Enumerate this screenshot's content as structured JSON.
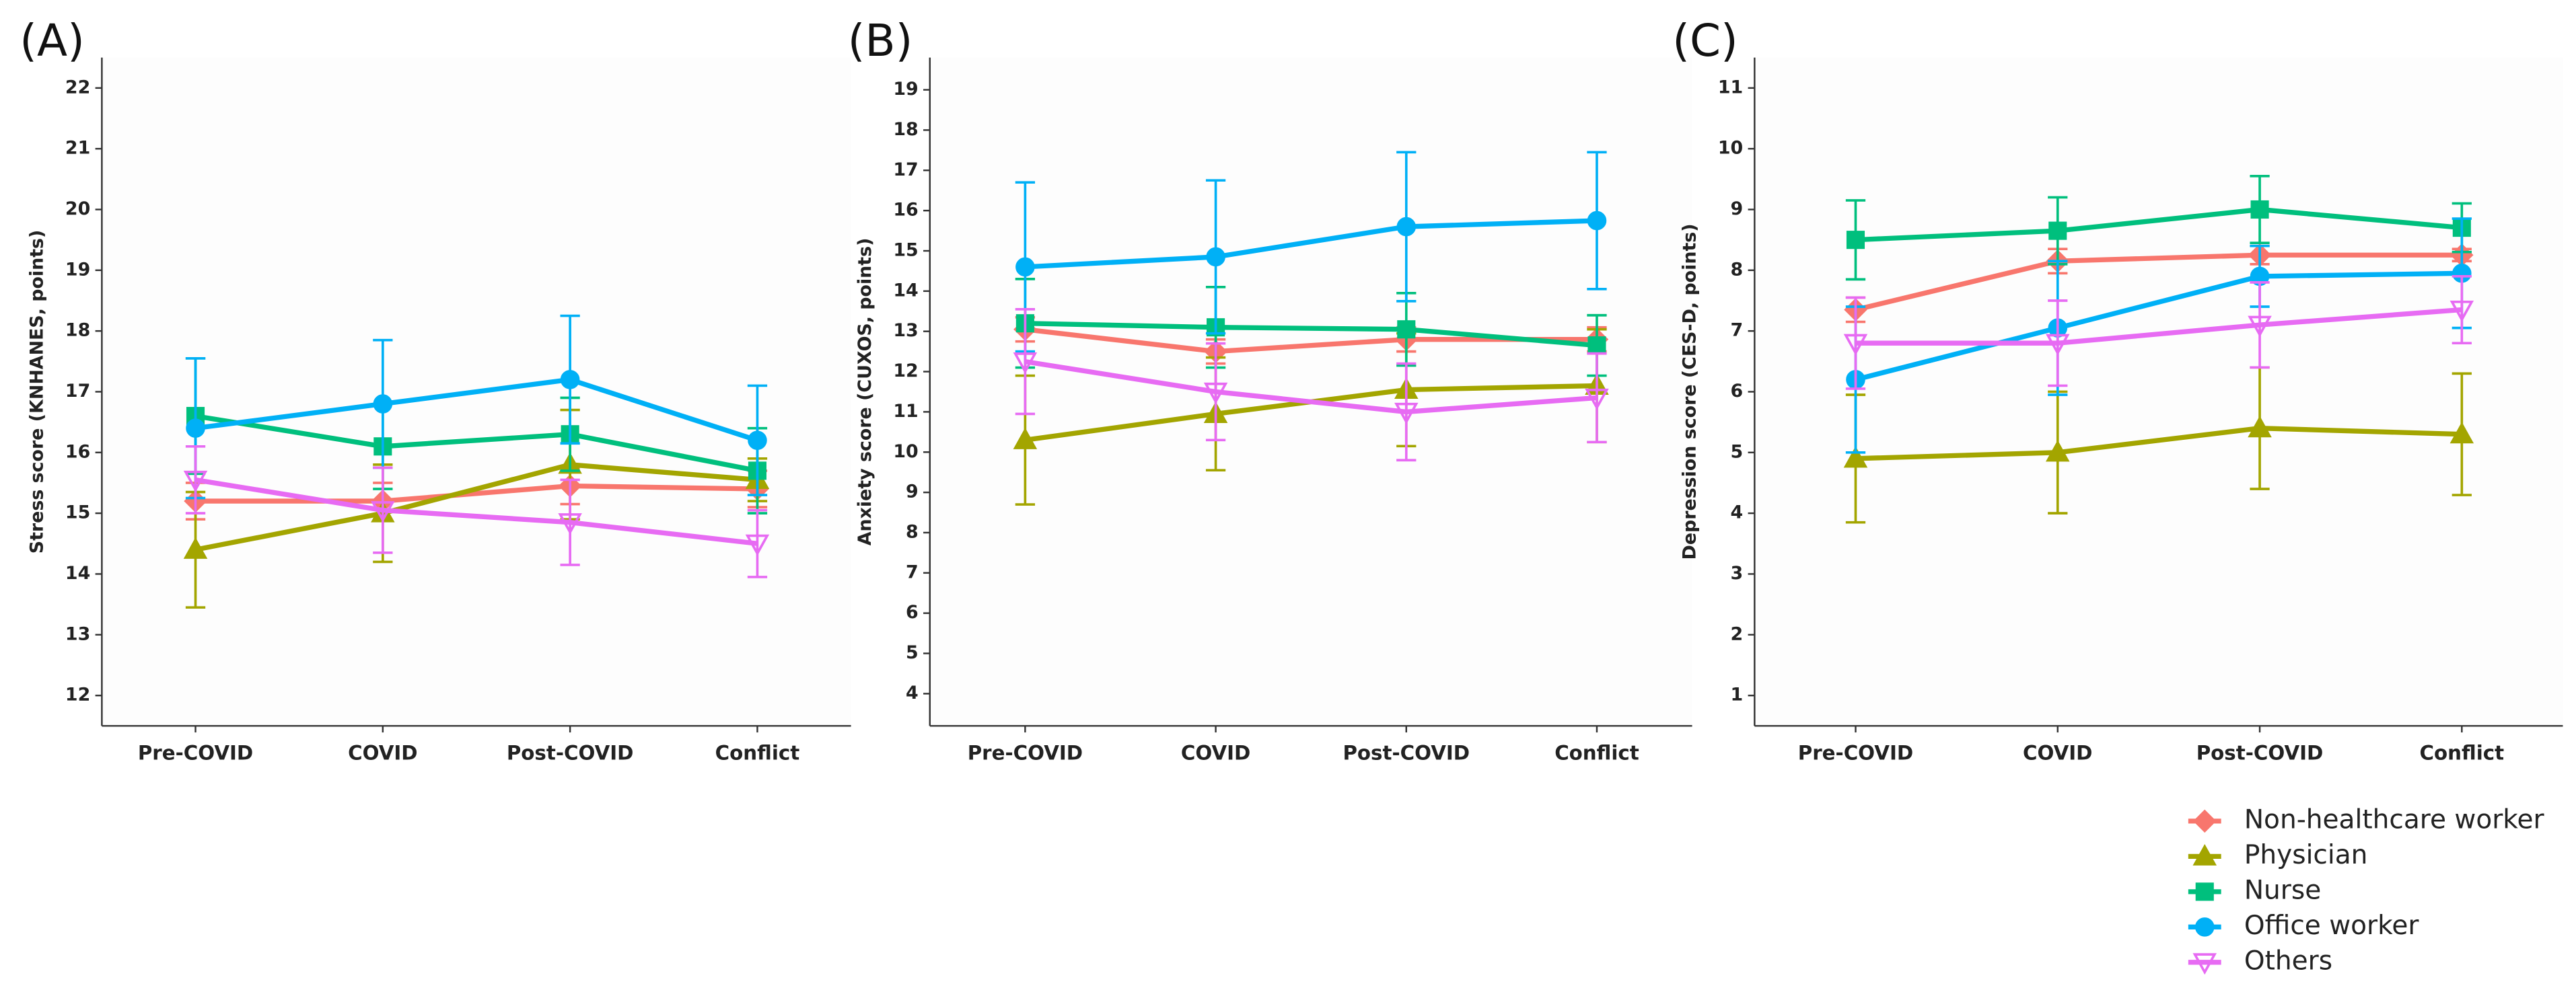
{
  "legend": [
    {
      "name": "Non-healthcare worker",
      "color": "#F8766D",
      "marker": "diamond"
    },
    {
      "name": "Physician",
      "color": "#A3A500",
      "marker": "triangle"
    },
    {
      "name": "Nurse",
      "color": "#00BF7D",
      "marker": "square"
    },
    {
      "name": "Office worker",
      "color": "#00B0F6",
      "marker": "circle"
    },
    {
      "name": "Others",
      "color": "#E76BF3",
      "marker": "open-down-triangle"
    }
  ],
  "chart_data": [
    {
      "type": "line",
      "panel": "(A)",
      "ylabel": "Stress score (KNHANES, points)",
      "categories": [
        "Pre-COVID",
        "COVID",
        "Post-COVID",
        "Conflict"
      ],
      "ylim": [
        11.5,
        22.5
      ],
      "yticks": [
        12,
        13,
        14,
        15,
        16,
        17,
        18,
        19,
        20,
        21,
        22
      ],
      "series": [
        {
          "values": [
            15.2,
            15.2,
            15.45,
            15.4
          ],
          "errors": [
            0.3,
            0.3,
            0.3,
            0.3
          ]
        },
        {
          "values": [
            14.4,
            15.0,
            15.8,
            15.55
          ],
          "errors": [
            0.95,
            0.8,
            0.9,
            0.35
          ]
        },
        {
          "values": [
            16.6,
            16.1,
            16.3,
            15.7
          ],
          "errors": [
            0.95,
            0.7,
            0.6,
            0.7
          ]
        },
        {
          "values": [
            16.4,
            16.8,
            17.2,
            16.2
          ],
          "errors": [
            1.15,
            1.05,
            1.05,
            0.9
          ]
        },
        {
          "values": [
            15.55,
            15.05,
            14.85,
            14.5
          ],
          "errors": [
            0.55,
            0.7,
            0.7,
            0.55
          ]
        }
      ]
    },
    {
      "type": "line",
      "panel": "(B)",
      "ylabel": "Anxiety score (CUXOS, points)",
      "categories": [
        "Pre-COVID",
        "COVID",
        "Post-COVID",
        "Conflict"
      ],
      "ylim": [
        3.2,
        19.8
      ],
      "yticks": [
        4,
        5,
        6,
        7,
        8,
        9,
        10,
        11,
        12,
        13,
        14,
        15,
        16,
        17,
        18,
        19
      ],
      "series": [
        {
          "values": [
            13.05,
            12.5,
            12.8,
            12.8
          ],
          "errors": [
            0.3,
            0.3,
            0.3,
            0.3
          ]
        },
        {
          "values": [
            10.3,
            10.95,
            11.55,
            11.65
          ],
          "errors": [
            1.6,
            1.4,
            1.4,
            1.4
          ]
        },
        {
          "values": [
            13.2,
            13.1,
            13.05,
            12.65
          ],
          "errors": [
            1.1,
            1.0,
            0.9,
            0.75
          ]
        },
        {
          "values": [
            14.6,
            14.85,
            15.6,
            15.75
          ],
          "errors": [
            2.1,
            1.9,
            1.85,
            1.7
          ]
        },
        {
          "values": [
            12.25,
            11.5,
            11.0,
            11.35
          ],
          "errors": [
            1.3,
            1.2,
            1.2,
            1.1
          ]
        }
      ]
    },
    {
      "type": "line",
      "panel": "(C)",
      "ylabel": "Depression score (CES-D, points)",
      "categories": [
        "Pre-COVID",
        "COVID",
        "Post-COVID",
        "Conflict"
      ],
      "ylim": [
        0.5,
        11.5
      ],
      "yticks": [
        1,
        2,
        3,
        4,
        5,
        6,
        7,
        8,
        9,
        10,
        11
      ],
      "series": [
        {
          "values": [
            7.35,
            8.15,
            8.25,
            8.25
          ],
          "errors": [
            0.2,
            0.2,
            0.15,
            0.1
          ]
        },
        {
          "values": [
            4.9,
            5.0,
            5.4,
            5.3
          ],
          "errors": [
            1.05,
            1.0,
            1.0,
            1.0
          ]
        },
        {
          "values": [
            8.5,
            8.65,
            9.0,
            8.7
          ],
          "errors": [
            0.65,
            0.55,
            0.55,
            0.4
          ]
        },
        {
          "values": [
            6.2,
            7.05,
            7.9,
            7.95
          ],
          "errors": [
            1.2,
            1.1,
            0.5,
            0.9
          ]
        },
        {
          "values": [
            6.8,
            6.8,
            7.1,
            7.35
          ],
          "errors": [
            0.75,
            0.7,
            0.7,
            0.55
          ]
        }
      ]
    }
  ]
}
